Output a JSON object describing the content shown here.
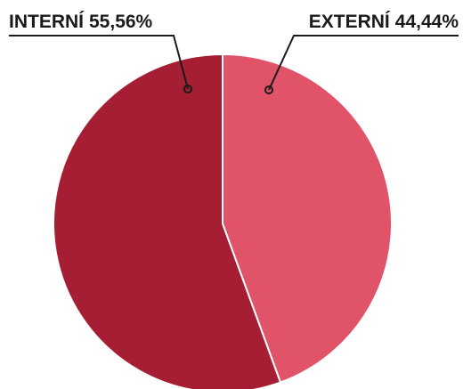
{
  "chart_data": {
    "type": "pie",
    "categories": [
      "INTERNÍ",
      "EXTERNÍ"
    ],
    "values": [
      55.56,
      44.44
    ],
    "value_labels": [
      "55,56%",
      "44,44%"
    ],
    "colors": [
      "#a51e34",
      "#e05368"
    ]
  }
}
